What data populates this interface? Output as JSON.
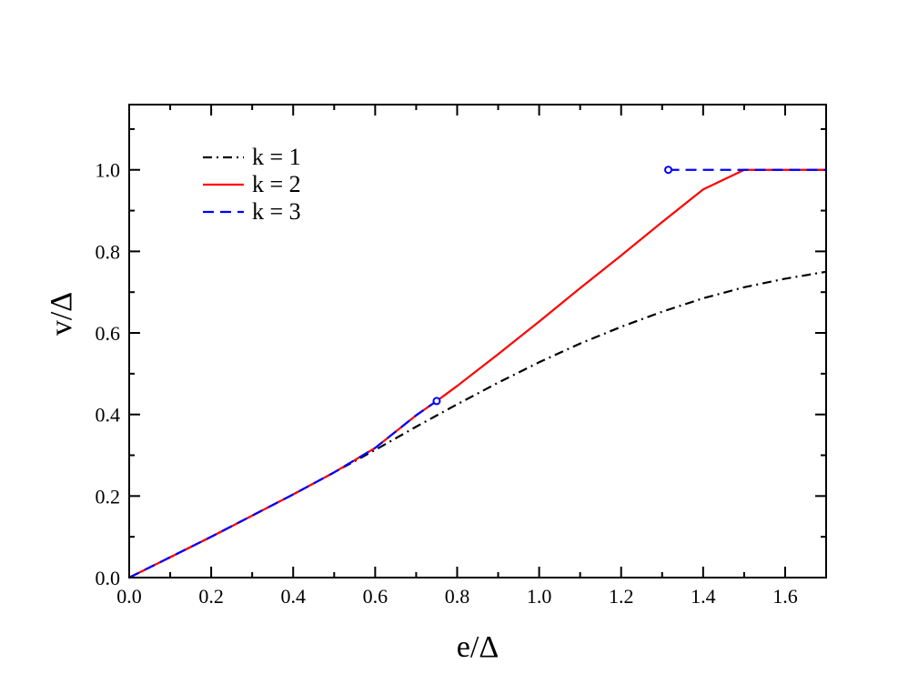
{
  "chart_data": {
    "type": "line",
    "xlabel": "e/Δ",
    "ylabel": "v/Δ",
    "xlim": [
      0.0,
      1.7
    ],
    "ylim": [
      0.0,
      1.16
    ],
    "xticks": [
      "0.0",
      "0.2",
      "0.4",
      "0.6",
      "0.8",
      "1.0",
      "1.2",
      "1.4",
      "1.6"
    ],
    "yticks": [
      "0.0",
      "0.2",
      "0.4",
      "0.6",
      "0.8",
      "1.0"
    ],
    "grid": false,
    "legend_position": "top-left",
    "series": [
      {
        "name": "k = 1",
        "color": "#000000",
        "style": "dash-dot",
        "x": [
          0.0,
          0.1,
          0.2,
          0.3,
          0.4,
          0.5,
          0.6,
          0.7,
          0.8,
          0.9,
          1.0,
          1.1,
          1.2,
          1.3,
          1.4,
          1.5,
          1.6,
          1.7
        ],
        "y": [
          0.0,
          0.05,
          0.1,
          0.152,
          0.204,
          0.258,
          0.313,
          0.37,
          0.425,
          0.478,
          0.528,
          0.574,
          0.615,
          0.652,
          0.685,
          0.712,
          0.733,
          0.75
        ]
      },
      {
        "name": "k = 2",
        "color": "#ff0000",
        "style": "solid",
        "x": [
          0.0,
          0.1,
          0.2,
          0.3,
          0.4,
          0.5,
          0.6,
          0.7,
          0.75,
          0.8,
          0.9,
          1.0,
          1.1,
          1.2,
          1.3,
          1.4,
          1.5,
          1.6,
          1.7
        ],
        "y": [
          0.0,
          0.05,
          0.1,
          0.152,
          0.204,
          0.258,
          0.318,
          0.398,
          0.433,
          0.47,
          0.548,
          0.628,
          0.71,
          0.79,
          0.872,
          0.952,
          1.0,
          1.0,
          1.0
        ]
      },
      {
        "name": "k = 3",
        "color": "#0000ff",
        "style": "dashed",
        "segments": [
          {
            "x": [
              0.0,
              0.1,
              0.2,
              0.3,
              0.4,
              0.5,
              0.6,
              0.7,
              0.75
            ],
            "y": [
              0.0,
              0.05,
              0.1,
              0.152,
              0.204,
              0.258,
              0.318,
              0.398,
              0.433
            ]
          },
          {
            "x": [
              1.315,
              1.4,
              1.5,
              1.6,
              1.7
            ],
            "y": [
              1.0,
              1.0,
              1.0,
              1.0,
              1.0
            ]
          }
        ],
        "markers": [
          {
            "x": 0.75,
            "y": 0.433
          },
          {
            "x": 1.315,
            "y": 1.0
          }
        ]
      }
    ]
  }
}
